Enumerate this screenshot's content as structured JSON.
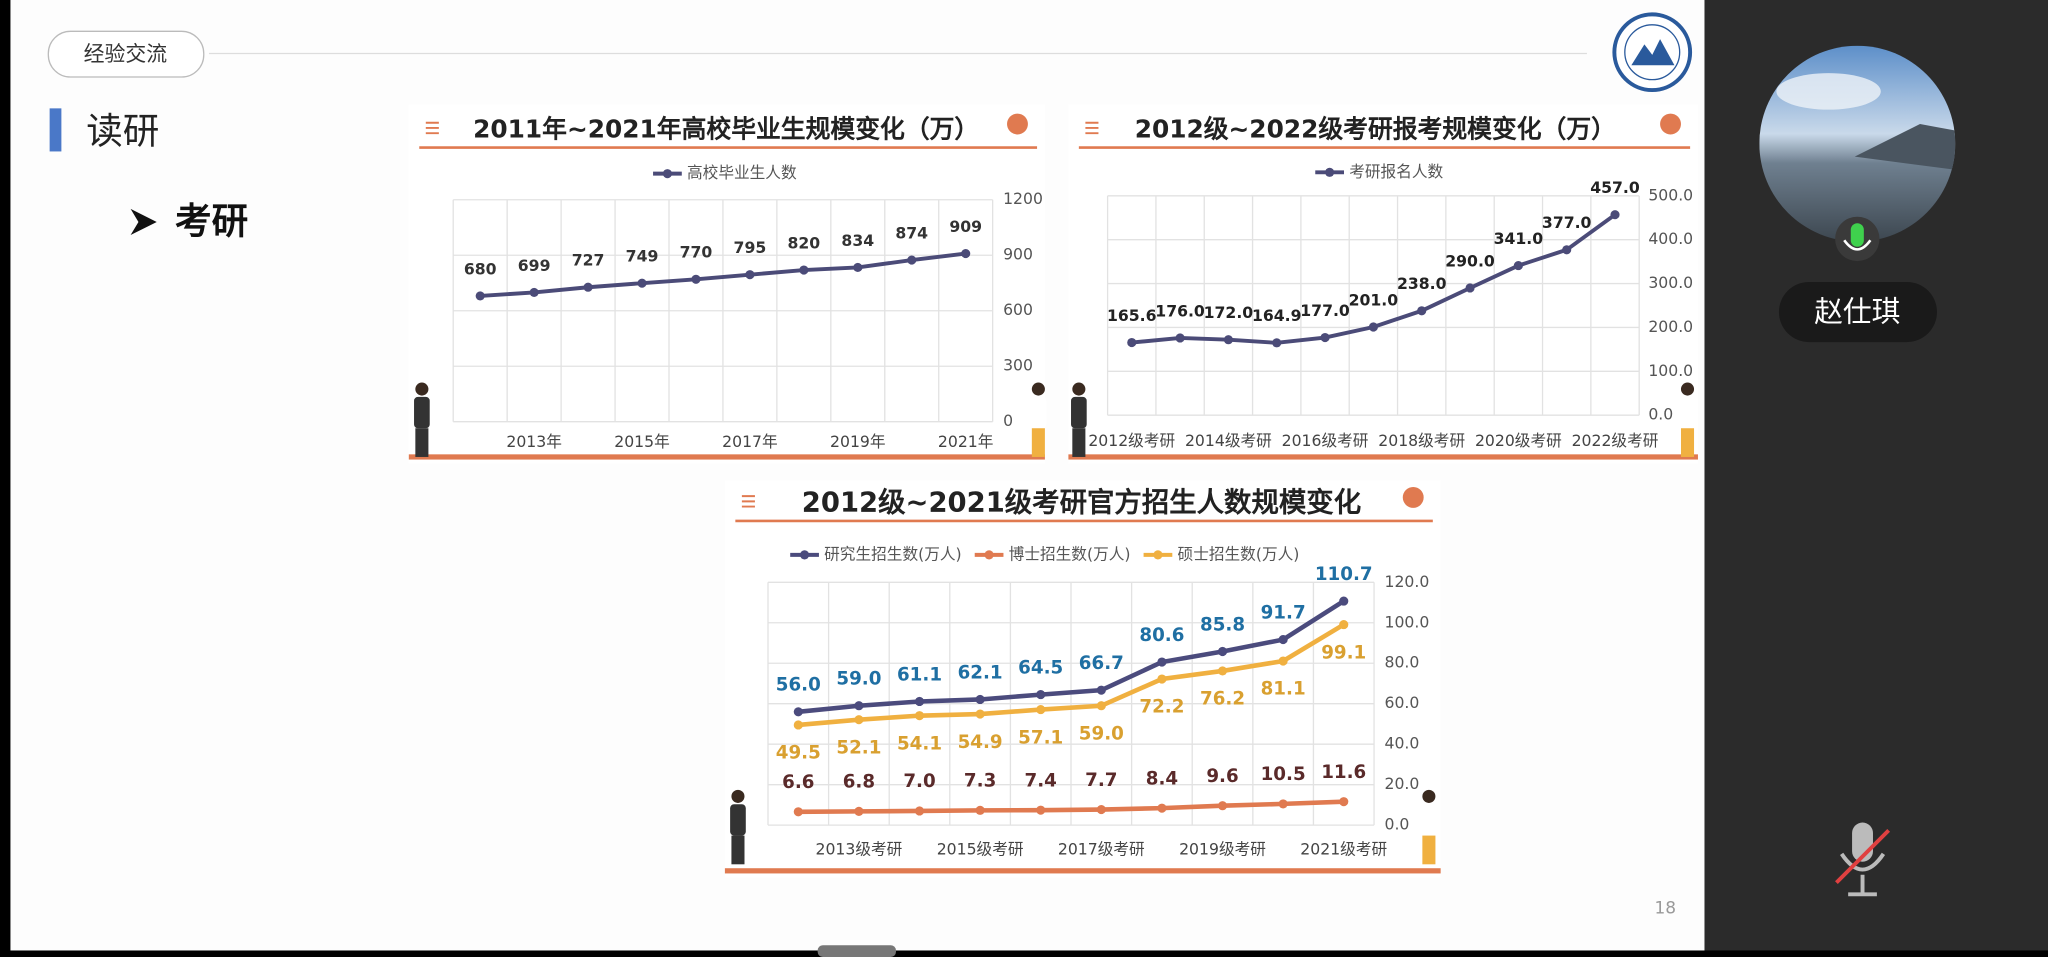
{
  "slide": {
    "tag": "经验交流",
    "heading": "读研",
    "bullet": "考研",
    "page": "18"
  },
  "participant": {
    "name": "赵仕琪"
  },
  "chart_data": [
    {
      "type": "line",
      "title": "2011年~2021年高校毕业生规模变化（万）",
      "categories": [
        null,
        "2013年",
        null,
        "2015年",
        null,
        "2017年",
        null,
        "2019年",
        null,
        "2021年"
      ],
      "series": [
        {
          "name": "高校毕业生人数",
          "color": "#4b4b78",
          "values": [
            680,
            699,
            727,
            749,
            770,
            795,
            820,
            834,
            874,
            909
          ]
        }
      ],
      "ylim": [
        0,
        1200
      ],
      "yticks": [
        0,
        300,
        600,
        900,
        1200
      ],
      "grid": true
    },
    {
      "type": "line",
      "title": "2012级~2022级考研报考规模变化（万）",
      "categories": [
        "2012级考研",
        null,
        "2014级考研",
        null,
        "2016级考研",
        null,
        "2018级考研",
        null,
        "2020级考研",
        null,
        "2022级考研"
      ],
      "series": [
        {
          "name": "考研报名人数",
          "color": "#4b4b78",
          "values": [
            165.6,
            176.0,
            172.0,
            164.9,
            177.0,
            201.0,
            238.0,
            290.0,
            341.0,
            377.0,
            457.0
          ],
          "value_labels": [
            "165.6",
            "176.0",
            "172.0",
            "164.9",
            "177.0",
            "201.0",
            "238.0",
            "290.0",
            "341.0",
            "377.0",
            "457.0"
          ]
        }
      ],
      "ylim": [
        0,
        500
      ],
      "yticks": [
        {
          "value": 0,
          "label": "0.0"
        },
        {
          "value": 100,
          "label": "100.0"
        },
        {
          "value": 200,
          "label": "200.0"
        },
        {
          "value": 300,
          "label": "300.0"
        },
        {
          "value": 400,
          "label": "400.0"
        },
        {
          "value": 500,
          "label": "500.0"
        }
      ],
      "grid": true
    },
    {
      "type": "line",
      "title": "2012级~2021级考研官方招生人数规模变化",
      "categories": [
        null,
        "2013级考研",
        null,
        "2015级考研",
        null,
        "2017级考研",
        null,
        "2019级考研",
        null,
        "2021级考研"
      ],
      "series": [
        {
          "name": "研究生招生数(万人)",
          "color": "#4b4b7d",
          "values": [
            56.0,
            59.0,
            61.1,
            62.1,
            64.5,
            66.7,
            80.6,
            85.8,
            91.7,
            110.7
          ],
          "value_labels": [
            "56.0",
            "59.0",
            "61.1",
            "62.1",
            "64.5",
            "66.7",
            "80.6",
            "85.8",
            "91.7",
            "110.7"
          ]
        },
        {
          "name": "博士招生数(万人)",
          "color": "#e07a50",
          "values": [
            6.6,
            6.8,
            7.0,
            7.3,
            7.4,
            7.7,
            8.4,
            9.6,
            10.5,
            11.6
          ],
          "value_labels": [
            "6.6",
            "6.8",
            "7.0",
            "7.3",
            "7.4",
            "7.7",
            "8.4",
            "9.6",
            "10.5",
            "11.6"
          ]
        },
        {
          "name": "硕士招生数(万人)",
          "color": "#f0b040",
          "values": [
            49.5,
            52.1,
            54.1,
            54.9,
            57.1,
            59.0,
            72.2,
            76.2,
            81.1,
            99.1
          ],
          "value_labels": [
            "49.5",
            "52.1",
            "54.1",
            "54.9",
            "57.1",
            "59.0",
            "72.2",
            "76.2",
            "81.1",
            "99.1"
          ]
        }
      ],
      "ylim": [
        0,
        120
      ],
      "yticks": [
        {
          "value": 0,
          "label": "0.0"
        },
        {
          "value": 20,
          "label": "20.0"
        },
        {
          "value": 40,
          "label": "40.0"
        },
        {
          "value": 60,
          "label": "60.0"
        },
        {
          "value": 80,
          "label": "80.0"
        },
        {
          "value": 100,
          "label": "100.0"
        },
        {
          "value": 120,
          "label": "120.0"
        }
      ],
      "grid": true
    }
  ]
}
